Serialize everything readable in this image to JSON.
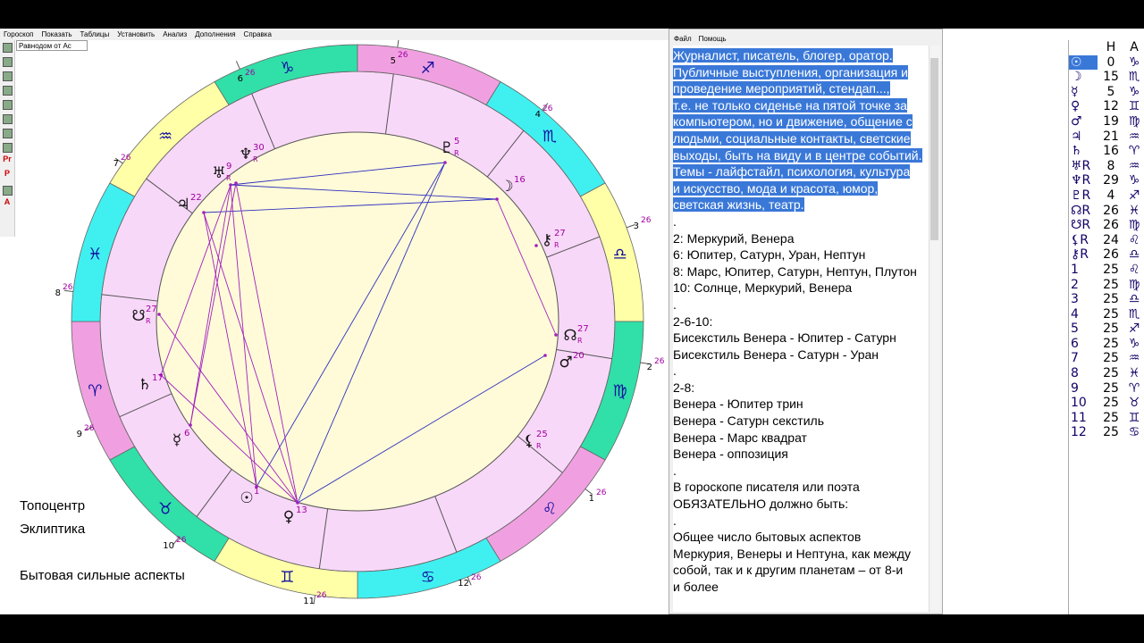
{
  "menu": {
    "items": [
      "Гороскоп",
      "Показать",
      "Таблицы",
      "Установить",
      "Анализ",
      "Дополнения",
      "Справка"
    ],
    "combo": "Равнодом от Ас"
  },
  "toolbar": {
    "labels": [
      "Pr",
      "P",
      "A",
      "?"
    ]
  },
  "wheel": {
    "signs": [
      {
        "glyph": "♑",
        "color": "#30e0a8"
      },
      {
        "glyph": "♐",
        "color": "#f0a0e0"
      },
      {
        "glyph": "♏",
        "color": "#40f0f0"
      },
      {
        "glyph": "♎",
        "color": "#ffffa8"
      },
      {
        "glyph": "♍",
        "color": "#30e0a8"
      },
      {
        "glyph": "♌",
        "color": "#f0a0e0"
      },
      {
        "glyph": "♋",
        "color": "#40f0f0"
      },
      {
        "glyph": "♊",
        "color": "#ffffa8"
      },
      {
        "glyph": "♉",
        "color": "#30e0a8"
      },
      {
        "glyph": "♈",
        "color": "#f0a0e0"
      },
      {
        "glyph": "♓",
        "color": "#40f0f0"
      },
      {
        "glyph": "♒",
        "color": "#ffffa8"
      }
    ],
    "houses": [
      {
        "number": "5",
        "degree": "26"
      },
      {
        "number": "4",
        "degree": "26"
      },
      {
        "number": "3",
        "degree": "26"
      },
      {
        "number": "2",
        "degree": "26"
      },
      {
        "number": "1",
        "degree": "26"
      },
      {
        "number": "12",
        "degree": "26"
      },
      {
        "number": "11",
        "degree": "26"
      },
      {
        "number": "10",
        "degree": "26"
      },
      {
        "number": "9",
        "degree": "26"
      },
      {
        "number": "8",
        "degree": "26"
      },
      {
        "number": "7",
        "degree": "26"
      },
      {
        "number": "6",
        "degree": "26"
      }
    ],
    "planets": [
      {
        "glyph": "♆",
        "degree": "30",
        "retro": "R"
      },
      {
        "glyph": "♅",
        "degree": "9",
        "retro": "R"
      },
      {
        "glyph": "♃",
        "degree": "22"
      },
      {
        "glyph": "♇",
        "degree": "5",
        "retro": "R"
      },
      {
        "glyph": "☽",
        "degree": "16"
      },
      {
        "glyph": "⚷",
        "degree": "27",
        "retro": "R"
      },
      {
        "glyph": "☊",
        "degree": "27",
        "retro": "R"
      },
      {
        "glyph": "♂",
        "degree": "20"
      },
      {
        "glyph": "⚸",
        "degree": "25",
        "retro": "R"
      },
      {
        "glyph": "☋",
        "degree": "27",
        "retro": "R"
      },
      {
        "glyph": "♄",
        "degree": "17"
      },
      {
        "glyph": "☿",
        "degree": "6"
      },
      {
        "glyph": "☉",
        "degree": "1"
      },
      {
        "glyph": "♀",
        "degree": "13"
      }
    ]
  },
  "notes": [
    "Топоцентр",
    "Эклиптика",
    "Бытовая сильные аспекты"
  ],
  "editor": {
    "menu": [
      "Файл",
      "Помощь"
    ],
    "selected_text": [
      "Журналист, писатель, блогер, оратор.",
      "Публичные выступления, организация и",
      "проведение мероприятий, стендап...,",
      "т.е. не только сиденье на пятой точке за",
      "компьютером, но и движение, общение с",
      "людьми, социальные контакты, светские",
      "выходы, быть на виду и в центре событий.",
      "Темы - лайфстайл, психология, культура",
      "и искусство, мода и красота, юмор,",
      "светская жизнь, театр."
    ],
    "text": [
      ".",
      "2: Меркурий, Венера",
      "6: Юпитер, Сатурн, Уран, Нептун",
      "8: Марс, Юпитер, Сатурн, Нептун, Плутон",
      "10: Солнце, Меркурий, Венера",
      ".",
      "2-6-10:",
      "Бисекстиль Венера - Юпитер - Сатурн",
      "Бисекстиль Венера - Сатурн - Уран",
      ".",
      "2-8:",
      "Венера - Юпитер трин",
      "Венера - Сатурн секстиль",
      "Венера - Марс квадрат",
      "Венера -  оппозиция",
      ".",
      "В гороскопе писателя или поэта",
      "ОБЯЗАТЕЛЬНО должно быть:",
      ".",
      "Общее число бытовых аспектов",
      "Меркурия, Венеры и Нептуна, как между",
      "собой, так и к другим планетам – от 8-и",
      "и более"
    ]
  },
  "table": {
    "header": [
      "H",
      "A"
    ],
    "rows": [
      [
        "☉",
        "0",
        "♑"
      ],
      [
        "☽",
        "15",
        "♏"
      ],
      [
        "☿",
        "5",
        "♑"
      ],
      [
        "♀",
        "12",
        "♊"
      ],
      [
        "♂",
        "19",
        "♍"
      ],
      [
        "♃",
        "21",
        "♒"
      ],
      [
        "♄",
        "16",
        "♈"
      ],
      [
        "♅R",
        "8",
        "♒"
      ],
      [
        "♆R",
        "29",
        "♑"
      ],
      [
        "♇R",
        "4",
        "♐"
      ],
      [
        "☊R",
        "26",
        "♓"
      ],
      [
        "☋R",
        "26",
        "♍"
      ],
      [
        "⚸R",
        "24",
        "♌"
      ],
      [
        "⚷R",
        "26",
        "♎"
      ],
      [
        "1",
        "25",
        "♌"
      ],
      [
        "2",
        "25",
        "♍"
      ],
      [
        "3",
        "25",
        "♎"
      ],
      [
        "4",
        "25",
        "♏"
      ],
      [
        "5",
        "25",
        "♐"
      ],
      [
        "6",
        "25",
        "♑"
      ],
      [
        "7",
        "25",
        "♒"
      ],
      [
        "8",
        "25",
        "♓"
      ],
      [
        "9",
        "25",
        "♈"
      ],
      [
        "10",
        "25",
        "♉"
      ],
      [
        "11",
        "25",
        "♊"
      ],
      [
        "12",
        "25",
        "♋"
      ]
    ]
  }
}
